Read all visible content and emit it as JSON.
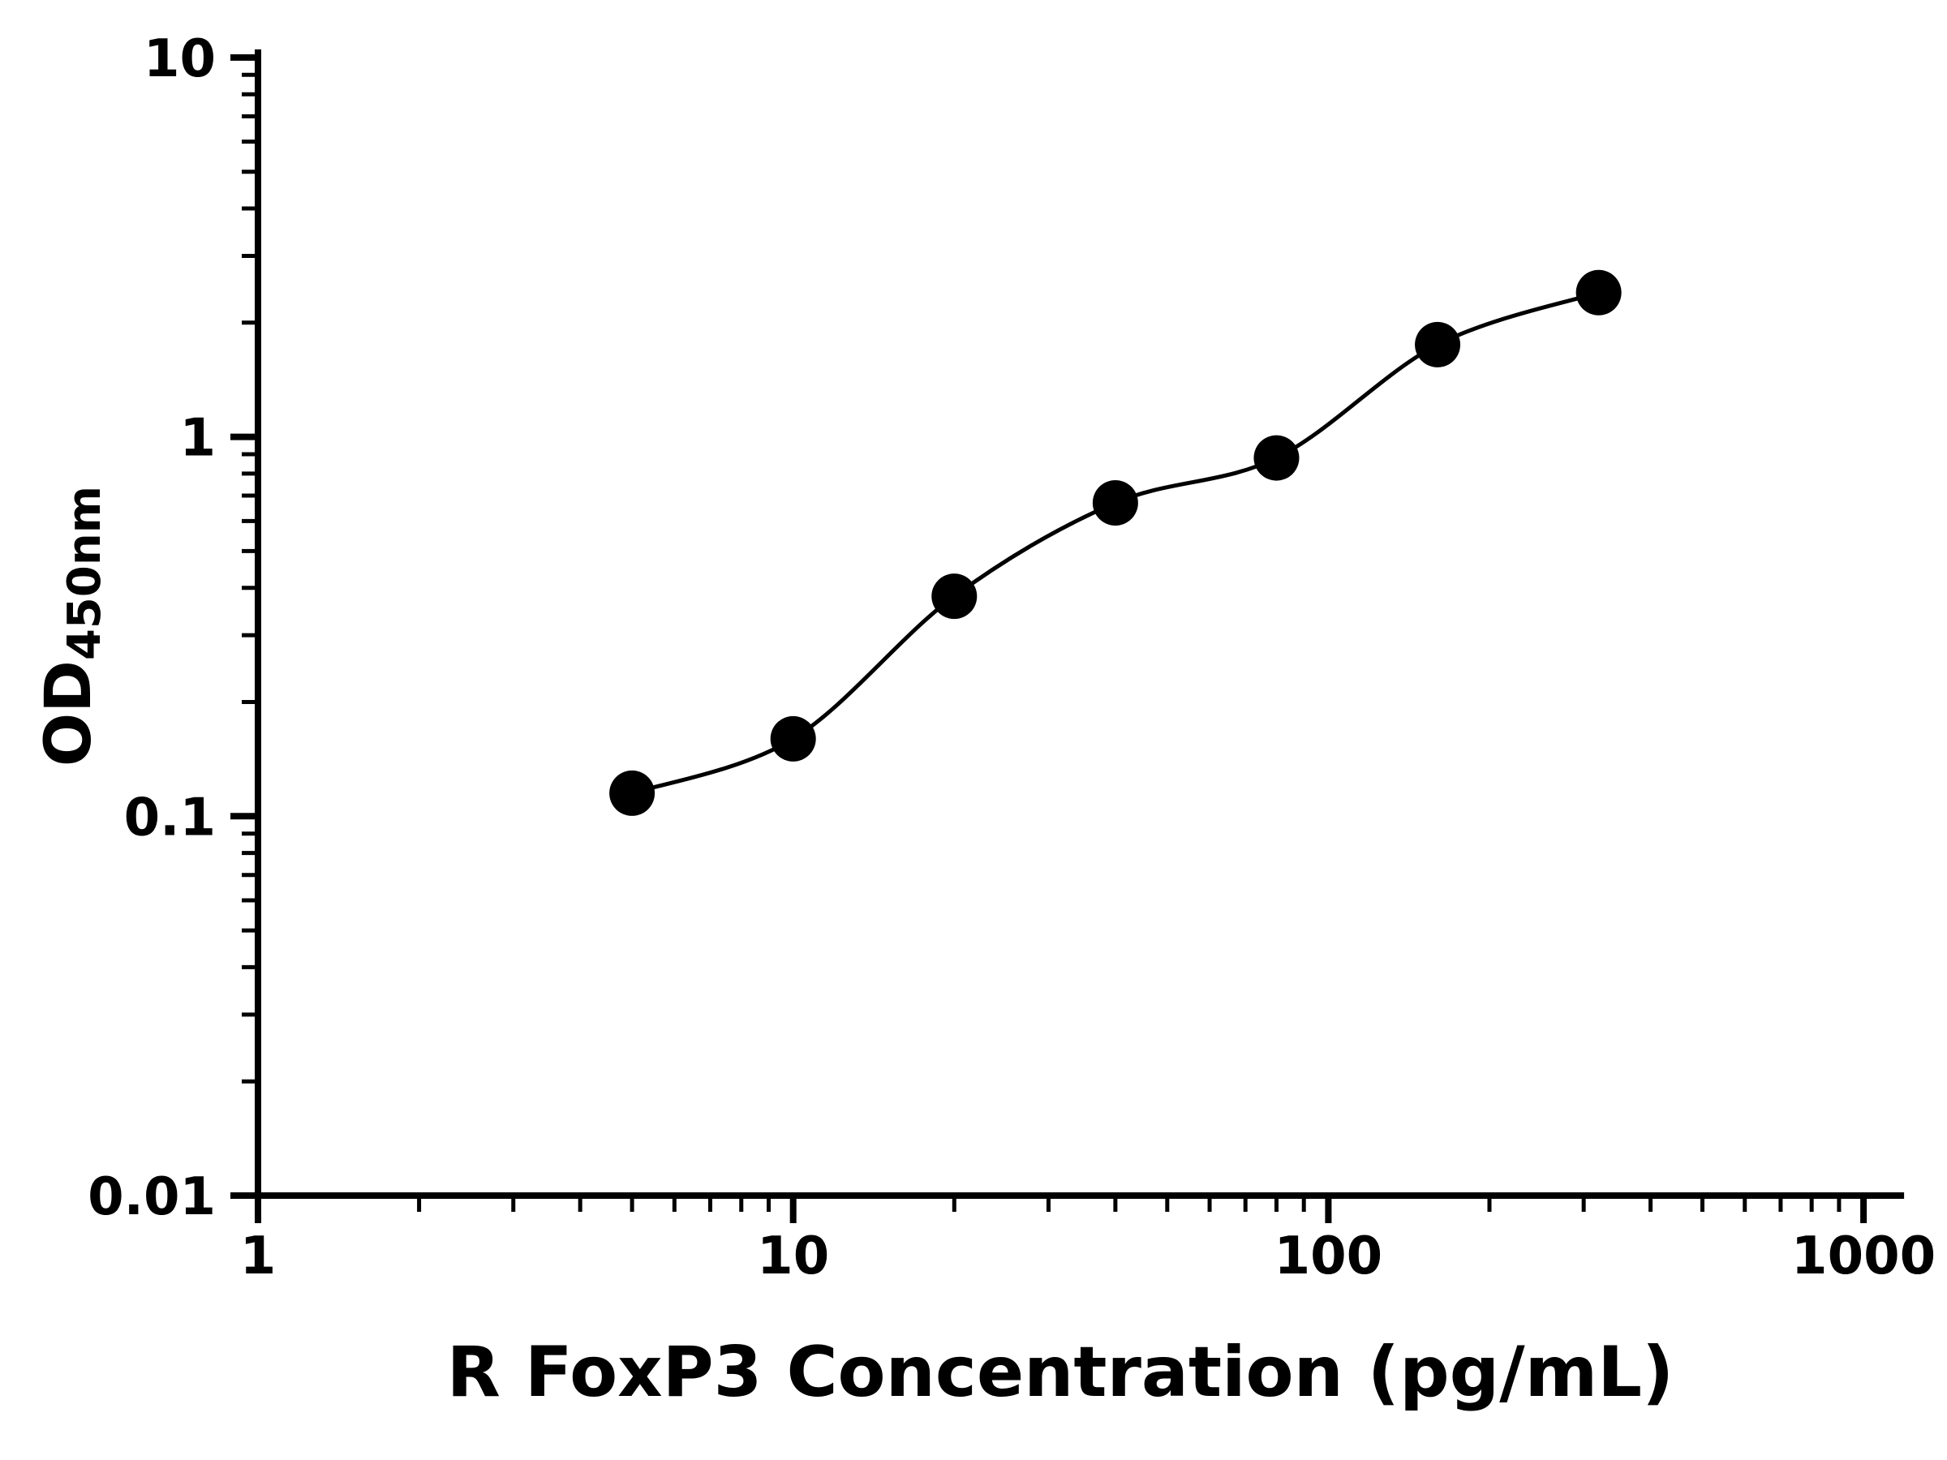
{
  "background": "#ffffff",
  "chart_data": {
    "type": "scatter",
    "title": "",
    "xlabel": "R FoxP3 Concentration (pg/mL)",
    "ylabel_main": "OD",
    "ylabel_sub": "450nm",
    "x_scale": "log",
    "y_scale": "log",
    "xlim": [
      1,
      1000
    ],
    "ylim": [
      0.01,
      10
    ],
    "x_major_ticks": [
      1,
      10,
      100,
      1000
    ],
    "x_tick_labels": [
      "1",
      "10",
      "100",
      "1000"
    ],
    "y_major_ticks": [
      0.01,
      0.1,
      1,
      10
    ],
    "y_tick_labels": [
      "0.01",
      "0.1",
      "1",
      "10"
    ],
    "grid": false,
    "legend": null,
    "points": [
      {
        "x": 5,
        "y": 0.115
      },
      {
        "x": 10,
        "y": 0.16
      },
      {
        "x": 20,
        "y": 0.38
      },
      {
        "x": 40,
        "y": 0.67
      },
      {
        "x": 80,
        "y": 0.88
      },
      {
        "x": 160,
        "y": 1.75
      },
      {
        "x": 320,
        "y": 2.4
      }
    ],
    "fit_line": true,
    "marker_color": "#000000",
    "line_color": "#000000",
    "axis_color": "#000000"
  }
}
